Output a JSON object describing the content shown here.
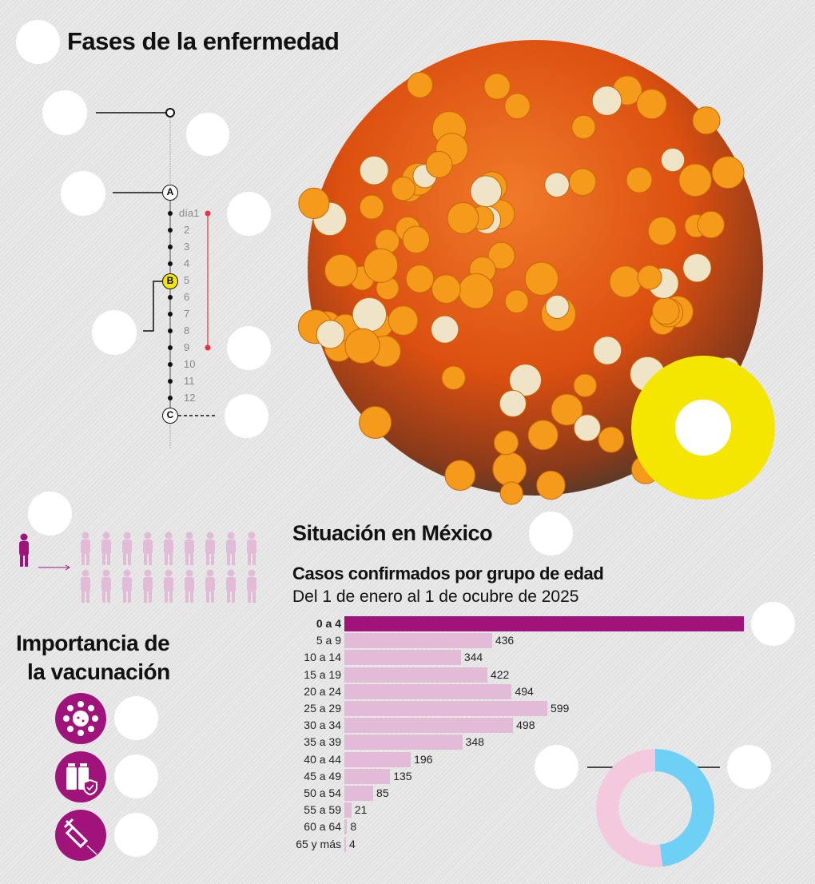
{
  "header": {
    "title": "Fases de la enfermedad"
  },
  "timeline": {
    "nodes": [
      "A",
      "B",
      "C"
    ],
    "days": [
      "día1",
      "2",
      "3",
      "4",
      "5",
      "6",
      "7",
      "8",
      "9",
      "10",
      "11",
      "12"
    ]
  },
  "vaccination": {
    "title_line1": "Importancia de",
    "title_line2": "la vacunación",
    "icons": [
      "virus-icon",
      "vaccine-bottles-shield-icon",
      "syringe-icon"
    ]
  },
  "mexico": {
    "title": "Situación en México",
    "chart_title": "Casos confirmados por grupo de edad",
    "chart_subtitle": "Del 1 de enero al 1 de ocubre de 2025"
  },
  "colors": {
    "accent": "#a0137a",
    "bar": "#e2bcd7",
    "highlight_yellow": "#f5e600",
    "donut_blue": "#6fd0f5",
    "donut_pink": "#f4c8dd",
    "timeline_red": "#e8343a"
  },
  "chart_data": {
    "type": "bar",
    "orientation": "horizontal",
    "title": "Casos confirmados por grupo de edad",
    "subtitle": "Del 1 de enero al 1 de ocubre de 2025",
    "categories": [
      "0 a 4",
      "5 a 9",
      "10 a 14",
      "15 a 19",
      "20 a 24",
      "25 a 29",
      "30 a 34",
      "35 a 39",
      "40 a 44",
      "45 a 49",
      "50 a 54",
      "55 a 59",
      "60 a 64",
      "65 y más"
    ],
    "values": [
      1180,
      436,
      344,
      422,
      494,
      599,
      498,
      348,
      196,
      135,
      85,
      21,
      8,
      4
    ],
    "value_labels": [
      "",
      "436",
      "344",
      "422",
      "494",
      "599",
      "498",
      "348",
      "196",
      "135",
      "85",
      "21",
      "8",
      "4"
    ],
    "highlight": "0 a 4"
  },
  "donut": {
    "type": "pie",
    "values": [
      48,
      52
    ],
    "colors": [
      "#6fd0f5",
      "#f4c8dd"
    ]
  }
}
